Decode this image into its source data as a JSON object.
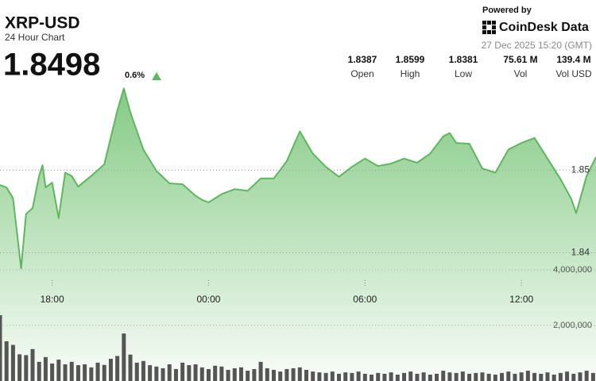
{
  "header": {
    "symbol": "XRP-USD",
    "subtitle": "24 Hour Chart",
    "price": "1.8498",
    "change": "0.6%",
    "powered_by": "Powered by",
    "brand": "CoinDesk Data",
    "timestamp": "27 Dec 2025 15:20 (GMT)"
  },
  "stats": [
    {
      "value": "1.8387",
      "label": "Open"
    },
    {
      "value": "1.8599",
      "label": "High"
    },
    {
      "value": "1.8381",
      "label": "Low"
    },
    {
      "value": "75.61 M",
      "label": "Vol"
    },
    {
      "value": "139.4 M",
      "label": "Vol USD"
    }
  ],
  "chart_data": [
    {
      "type": "area",
      "color": "#5cb85c",
      "grid": true,
      "xlim": [
        16.0,
        38.86
      ],
      "xticks": [
        {
          "value": 18,
          "label": "18:00"
        },
        {
          "value": 24,
          "label": "00:00"
        },
        {
          "value": 30,
          "label": "06:00"
        },
        {
          "value": 36,
          "label": "12:00"
        }
      ],
      "ylim": [
        1.836,
        1.861
      ],
      "yticks": [
        1.84,
        1.85
      ],
      "x": [
        16.0,
        16.25,
        16.5,
        16.81,
        17.0,
        17.25,
        17.5,
        17.63,
        17.75,
        18.0,
        18.25,
        18.5,
        18.75,
        19.0,
        19.5,
        20.0,
        20.5,
        20.75,
        21.0,
        21.5,
        22.0,
        22.5,
        23.0,
        23.5,
        23.75,
        24.0,
        24.5,
        25.0,
        25.5,
        26.0,
        26.5,
        27.0,
        27.5,
        28.0,
        28.5,
        29.0,
        29.5,
        30.0,
        30.5,
        31.0,
        31.5,
        32.0,
        32.5,
        33.0,
        33.25,
        33.5,
        34.0,
        34.5,
        35.0,
        35.5,
        36.0,
        36.5,
        37.0,
        37.5,
        37.9,
        38.1,
        38.5,
        38.86
      ],
      "values": [
        1.8482,
        1.8479,
        1.8466,
        1.8381,
        1.8447,
        1.8454,
        1.8493,
        1.8506,
        1.8479,
        1.8485,
        1.8442,
        1.8497,
        1.8493,
        1.848,
        1.8493,
        1.8507,
        1.8572,
        1.8599,
        1.857,
        1.8525,
        1.8499,
        1.8484,
        1.8483,
        1.8469,
        1.8464,
        1.8461,
        1.8471,
        1.8477,
        1.8475,
        1.849,
        1.849,
        1.8511,
        1.8547,
        1.852,
        1.8504,
        1.8492,
        1.8504,
        1.8514,
        1.8505,
        1.8508,
        1.8514,
        1.8509,
        1.852,
        1.8541,
        1.8545,
        1.8533,
        1.8532,
        1.8502,
        1.8497,
        1.8525,
        1.8533,
        1.8539,
        1.8514,
        1.8489,
        1.8466,
        1.8448,
        1.8493,
        1.8516
      ]
    },
    {
      "type": "bar",
      "color": "#555555",
      "grid": true,
      "xlim": [
        16.0,
        38.86
      ],
      "ylim": [
        0,
        4000000
      ],
      "yticks": [
        {
          "value": 2000000,
          "label": "2,000,000"
        },
        {
          "value": 4000000,
          "label": "4,000,000"
        }
      ],
      "x": [
        16.0,
        16.25,
        16.5,
        16.75,
        17.0,
        17.25,
        17.5,
        17.75,
        18.0,
        18.25,
        18.5,
        18.75,
        19.0,
        19.25,
        19.5,
        19.75,
        20.0,
        20.25,
        20.5,
        20.75,
        21.0,
        21.25,
        21.5,
        21.75,
        22.0,
        22.25,
        22.5,
        22.75,
        23.0,
        23.25,
        23.5,
        23.75,
        24.0,
        24.25,
        24.5,
        24.75,
        25.0,
        25.25,
        25.5,
        25.75,
        26.0,
        26.25,
        26.5,
        26.75,
        27.0,
        27.25,
        27.5,
        27.75,
        28.0,
        28.25,
        28.5,
        28.75,
        29.0,
        29.25,
        29.5,
        29.75,
        30.0,
        30.25,
        30.5,
        30.75,
        31.0,
        31.25,
        31.5,
        31.75,
        32.0,
        32.25,
        32.5,
        32.75,
        33.0,
        33.25,
        33.5,
        33.75,
        34.0,
        34.25,
        34.5,
        34.75,
        35.0,
        35.25,
        35.5,
        35.75,
        36.0,
        36.25,
        36.5,
        36.75,
        37.0,
        37.25,
        37.5,
        37.75,
        38.0,
        38.25,
        38.5,
        38.75
      ],
      "values": [
        2370000,
        1430000,
        1300000,
        960000,
        930000,
        1150000,
        690000,
        860000,
        630000,
        770000,
        600000,
        690000,
        570000,
        600000,
        490000,
        660000,
        580000,
        800000,
        900000,
        1710000,
        950000,
        660000,
        720000,
        570000,
        520000,
        460000,
        600000,
        430000,
        660000,
        570000,
        600000,
        490000,
        430000,
        550000,
        520000,
        400000,
        460000,
        490000,
        370000,
        430000,
        690000,
        460000,
        400000,
        340000,
        430000,
        460000,
        490000,
        400000,
        340000,
        310000,
        290000,
        340000,
        260000,
        310000,
        290000,
        340000,
        260000,
        230000,
        290000,
        260000,
        310000,
        230000,
        290000,
        340000,
        260000,
        310000,
        230000,
        260000,
        370000,
        310000,
        290000,
        340000,
        260000,
        290000,
        310000,
        260000,
        230000,
        290000,
        340000,
        260000,
        310000,
        370000,
        290000,
        260000,
        310000,
        230000,
        290000,
        340000,
        260000,
        310000,
        370000,
        290000
      ]
    }
  ]
}
